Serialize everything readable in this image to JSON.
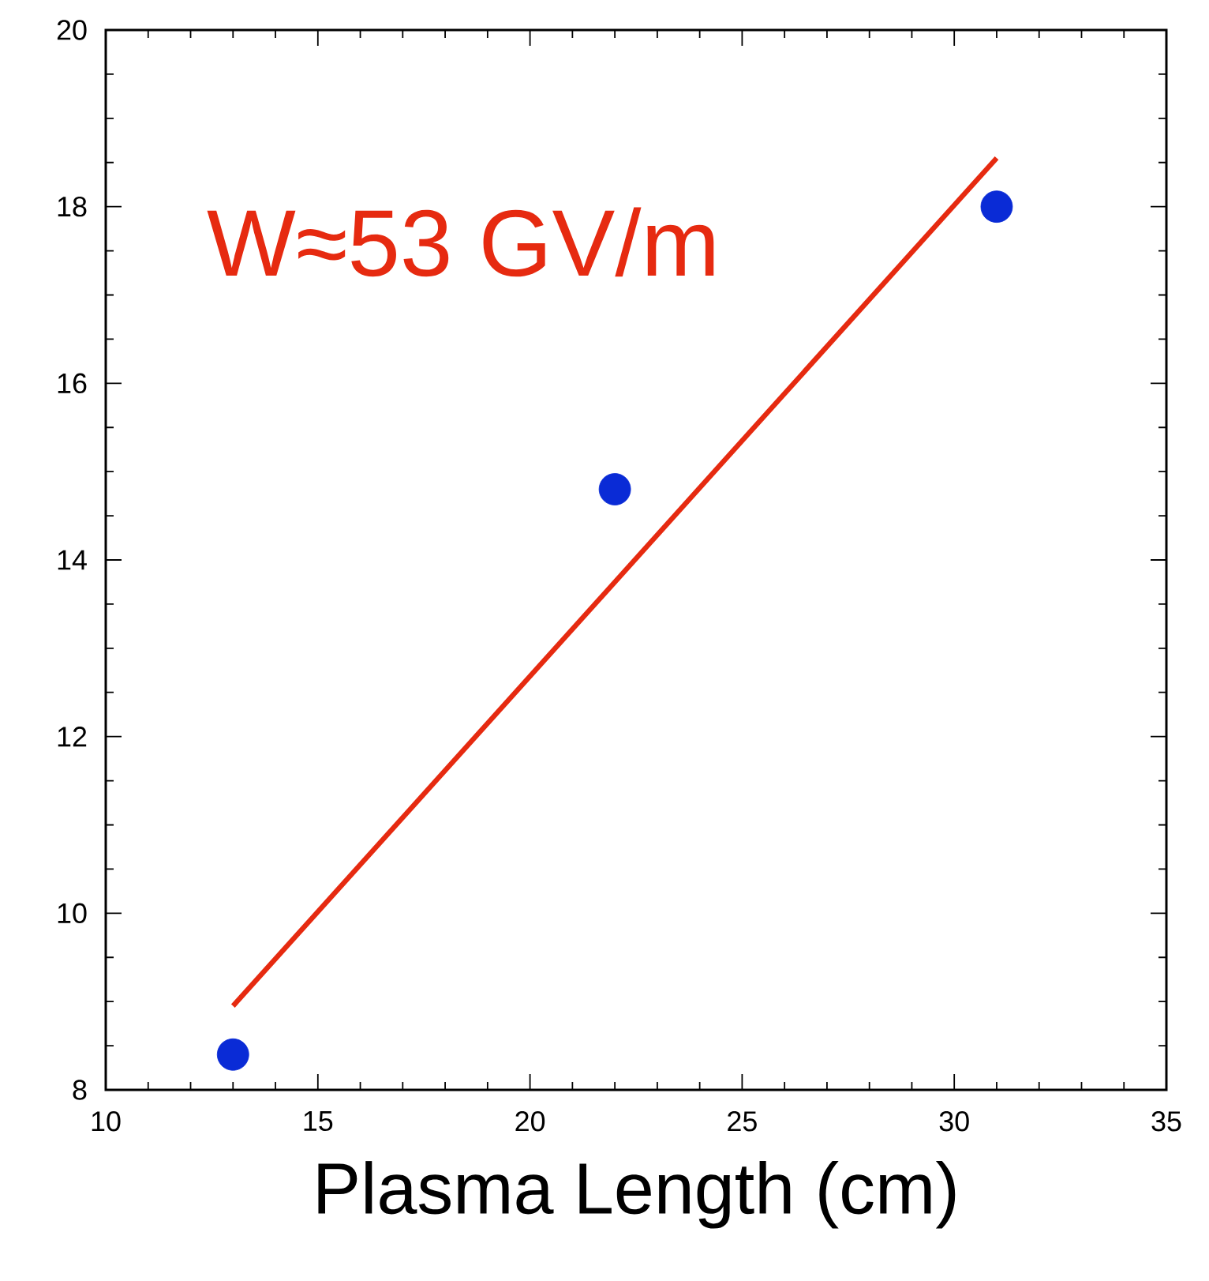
{
  "chart_data": {
    "type": "scatter",
    "xlabel": "Plasma Length (cm)",
    "annotations": [
      "W≈53 GV/m"
    ],
    "xlim": [
      10,
      35
    ],
    "xticks": [
      10,
      15,
      20,
      25,
      30,
      35
    ],
    "ylim": [
      8,
      20
    ],
    "yticks": [
      8,
      10,
      12,
      14,
      16,
      18,
      20
    ],
    "series": [
      {
        "color": "#0a2bd6",
        "marker": "circle",
        "x": [
          13,
          22,
          31
        ],
        "values": [
          8.4,
          14.8,
          18.0
        ]
      },
      {
        "type": "line",
        "color": "#e62a10",
        "marker": "none",
        "x": [
          13,
          31
        ],
        "values": [
          8.95,
          18.55
        ]
      }
    ]
  }
}
